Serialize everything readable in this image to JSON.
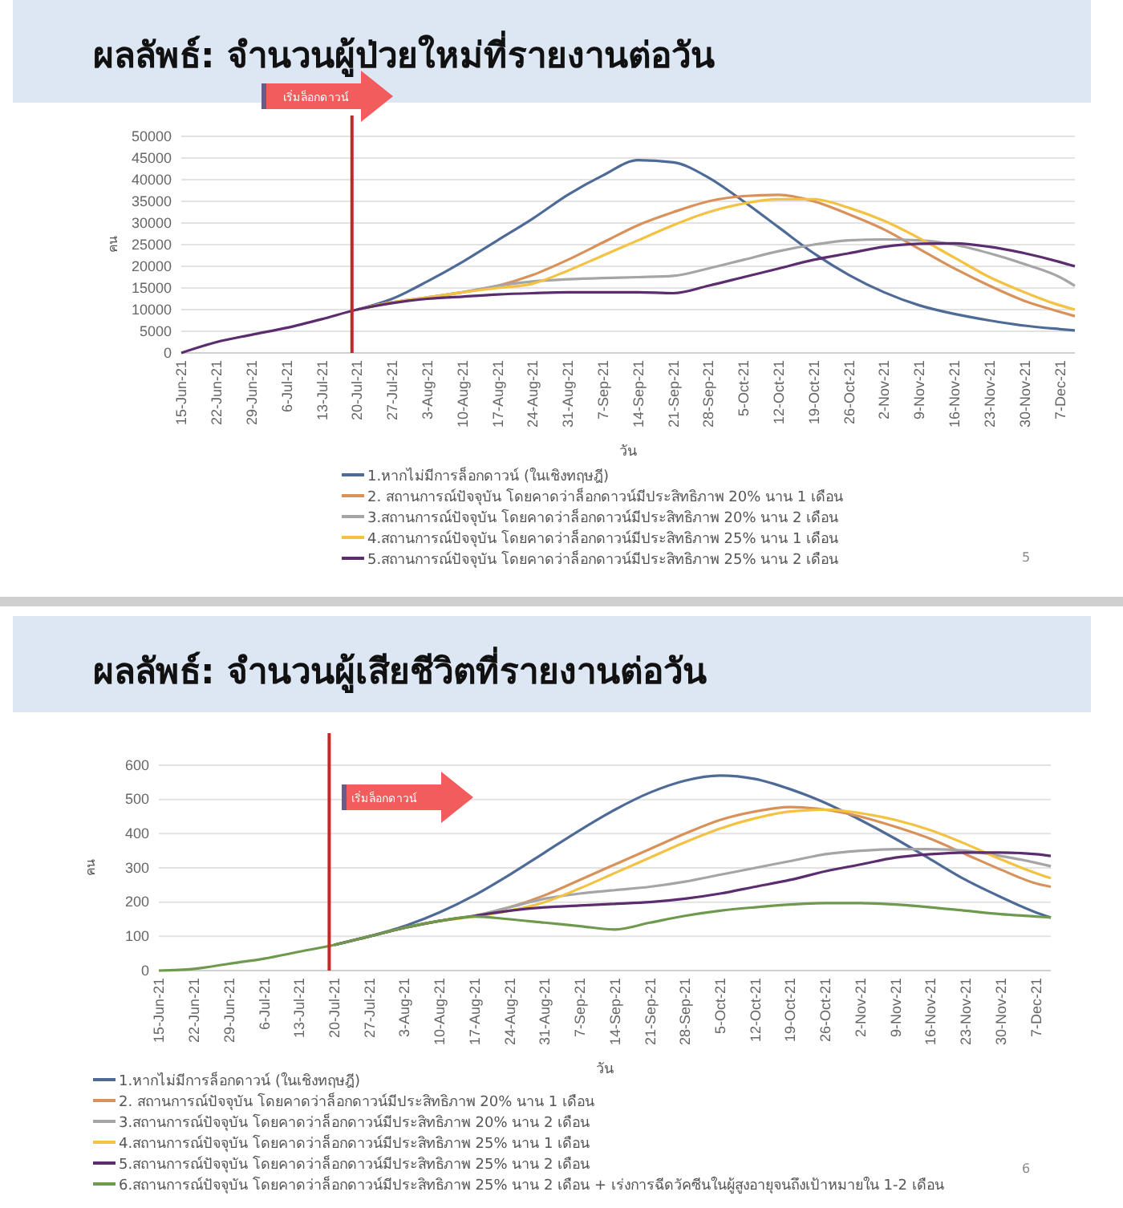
{
  "chart_data": [
    {
      "type": "line",
      "title": "ผลลัพธ์: จำนวนผู้ป่วยใหม่ที่รายงานต่อวัน",
      "xlabel": "วัน",
      "ylabel": "คน",
      "x": [
        "--06-15",
        "--06-22",
        "--06-29",
        "--07-06",
        "--07-13",
        "--07-20",
        "--07-27",
        "--08-03",
        "--08-10",
        "--08-17",
        "--08-24",
        "--08-31",
        "--09-07",
        "--09-14",
        "--09-21",
        "--09-28",
        "--10-05",
        "--10-12",
        "--10-19",
        "--10-26",
        "--11-02",
        "--11-09",
        "--11-16",
        "--11-23",
        "--11-30",
        "--12-07",
        "--12-10"
      ],
      "series": [
        {
          "name": "1.หากไม่มีการล็อกดาวน์ (ในเชิงทฤษฎี)",
          "color": "#4e6a97",
          "values": [
            null,
            null,
            null,
            null,
            null,
            10000,
            12500,
            16500,
            21000,
            26000,
            31000,
            36500,
            41000,
            44500,
            44000,
            40500,
            35000,
            29000,
            23000,
            18000,
            14000,
            11000,
            9000,
            7500,
            6300,
            5500,
            5200
          ]
        },
        {
          "name": "2.  สถานการณ์ปัจจุบัน โดยคาดว่าล็อกดาวน์มีประสิทธิภาพ 20% นาน 1 เดือน",
          "color": "#d9915a",
          "values": [
            null,
            null,
            null,
            null,
            null,
            10000,
            11700,
            12800,
            14000,
            15500,
            18000,
            21500,
            25500,
            29500,
            32500,
            35000,
            36200,
            36500,
            35000,
            32000,
            28500,
            24000,
            19500,
            15500,
            12000,
            9500,
            8500
          ]
        },
        {
          "name": "3.สถานการณ์ปัจจุบัน โดยคาดว่าล็อกดาวน์มีประสิทธิภาพ 20% นาน 2 เดือน",
          "color": "#a5a5a5",
          "values": [
            null,
            null,
            null,
            null,
            null,
            10000,
            11700,
            12800,
            14000,
            15500,
            16500,
            17000,
            17300,
            17500,
            17800,
            19500,
            21500,
            23500,
            25000,
            26000,
            26200,
            26000,
            25000,
            23000,
            20500,
            17500,
            15500
          ]
        },
        {
          "name": "4.สถานการณ์ปัจจุบัน โดยคาดว่าล็อกดาวน์มีประสิทธิภาพ 25% นาน 1 เดือน",
          "color": "#f4c242",
          "values": [
            null,
            null,
            null,
            null,
            null,
            10000,
            11700,
            12800,
            14000,
            15000,
            16000,
            19000,
            22500,
            26000,
            29500,
            32500,
            34500,
            35500,
            35500,
            33500,
            30500,
            26500,
            22000,
            17500,
            14000,
            11000,
            10000
          ]
        },
        {
          "name": "5.สถานการณ์ปัจจุบัน โดยคาดว่าล็อกดาวน์มีประสิทธิภาพ 25% นาน 2 เดือน",
          "color": "#5b2d6e",
          "values": [
            0,
            2500,
            4200,
            5800,
            7800,
            10000,
            11500,
            12500,
            13000,
            13500,
            13800,
            14000,
            14000,
            14000,
            13800,
            15500,
            17500,
            19500,
            21500,
            23000,
            24500,
            25200,
            25300,
            24500,
            23000,
            21000,
            20000
          ]
        }
      ],
      "xlim": [
        "--06-15",
        "--12-10"
      ],
      "xticks": [
        {
          "value": "--06-15",
          "label": "15-Jun-21"
        },
        {
          "value": "--06-22",
          "label": "22-Jun-21"
        },
        {
          "value": "--06-29",
          "label": "29-Jun-21"
        },
        {
          "value": "--07-06",
          "label": "6-Jul-21"
        },
        {
          "value": "--07-13",
          "label": "13-Jul-21"
        },
        {
          "value": "--07-20",
          "label": "20-Jul-21"
        },
        {
          "value": "--07-27",
          "label": "27-Jul-21"
        },
        {
          "value": "--08-03",
          "label": "3-Aug-21"
        },
        {
          "value": "--08-10",
          "label": "10-Aug-21"
        },
        {
          "value": "--08-17",
          "label": "17-Aug-21"
        },
        {
          "value": "--08-24",
          "label": "24-Aug-21"
        },
        {
          "value": "--08-31",
          "label": "31-Aug-21"
        },
        {
          "value": "--09-07",
          "label": "7-Sep-21"
        },
        {
          "value": "--09-14",
          "label": "14-Sep-21"
        },
        {
          "value": "--09-21",
          "label": "21-Sep-21"
        },
        {
          "value": "--09-28",
          "label": "28-Sep-21"
        },
        {
          "value": "--10-05",
          "label": "5-Oct-21"
        },
        {
          "value": "--10-12",
          "label": "12-Oct-21"
        },
        {
          "value": "--10-19",
          "label": "19-Oct-21"
        },
        {
          "value": "--10-26",
          "label": "26-Oct-21"
        },
        {
          "value": "--11-02",
          "label": "2-Nov-21"
        },
        {
          "value": "--11-09",
          "label": "9-Nov-21"
        },
        {
          "value": "--11-16",
          "label": "16-Nov-21"
        },
        {
          "value": "--11-23",
          "label": "23-Nov-21"
        },
        {
          "value": "--11-30",
          "label": "30-Nov-21"
        },
        {
          "value": "--12-07",
          "label": "7-Dec-21"
        }
      ],
      "ylim": [
        0,
        50000
      ],
      "yticks": [
        0,
        5000,
        10000,
        15000,
        20000,
        25000,
        30000,
        35000,
        40000,
        45000,
        50000
      ],
      "grid": "y",
      "legend": "bottom",
      "ref_lines": [
        {
          "axis": "x",
          "value": "--07-19",
          "label": "เริ่มล็อกดาวน์",
          "color": "#c62828"
        }
      ],
      "annotations": [
        "5"
      ]
    },
    {
      "type": "line",
      "title": "ผลลัพธ์: จำนวนผู้เสียชีวิตที่รายงานต่อวัน",
      "xlabel": "วัน",
      "ylabel": "คน",
      "x": [
        "--06-15",
        "--06-22",
        "--06-29",
        "--07-06",
        "--07-13",
        "--07-20",
        "--07-27",
        "--08-03",
        "--08-10",
        "--08-17",
        "--08-24",
        "--08-31",
        "--09-07",
        "--09-14",
        "--09-21",
        "--09-28",
        "--10-05",
        "--10-12",
        "--10-19",
        "--10-26",
        "--11-02",
        "--11-09",
        "--11-16",
        "--11-23",
        "--11-30",
        "--12-07",
        "--12-10"
      ],
      "series": [
        {
          "name": "1.หากไม่มีการล็อกดาวน์ (ในเชิงทฤษฎี)",
          "color": "#4e6a97",
          "values": [
            null,
            null,
            null,
            null,
            null,
            75,
            100,
            130,
            170,
            220,
            280,
            345,
            410,
            470,
            520,
            555,
            570,
            560,
            530,
            490,
            440,
            385,
            325,
            265,
            215,
            170,
            155
          ]
        },
        {
          "name": "2.  สถานการณ์ปัจจุบัน โดยคาดว่าล็อกดาวน์มีประสิทธิภาพ 20% นาน 1 เดือน",
          "color": "#d9915a",
          "values": [
            null,
            null,
            null,
            null,
            null,
            75,
            100,
            125,
            145,
            160,
            185,
            220,
            265,
            310,
            355,
            400,
            440,
            465,
            478,
            470,
            450,
            420,
            385,
            340,
            295,
            255,
            245
          ]
        },
        {
          "name": "3.สถานการณ์ปัจจุบัน โดยคาดว่าล็อกดาวน์มีประสิทธิภาพ 20% นาน 2 เดือน",
          "color": "#a5a5a5",
          "values": [
            null,
            null,
            null,
            null,
            null,
            75,
            100,
            125,
            145,
            160,
            185,
            210,
            225,
            235,
            245,
            260,
            280,
            300,
            320,
            340,
            350,
            355,
            355,
            350,
            335,
            315,
            305
          ]
        },
        {
          "name": "4.สถานการณ์ปัจจุบัน โดยคาดว่าล็อกดาวน์มีประสิทธิภาพ 25% นาน 1 เดือน",
          "color": "#f4c242",
          "values": [
            null,
            null,
            null,
            null,
            null,
            null,
            null,
            125,
            145,
            158,
            175,
            200,
            240,
            285,
            330,
            375,
            415,
            445,
            465,
            470,
            460,
            440,
            410,
            370,
            325,
            285,
            270
          ]
        },
        {
          "name": "5.สถานการณ์ปัจจุบัน โดยคาดว่าล็อกดาวน์มีประสิทธิภาพ 25% นาน 2 เดือน",
          "color": "#5b2d6e",
          "values": [
            null,
            null,
            null,
            null,
            null,
            75,
            100,
            125,
            145,
            160,
            175,
            185,
            190,
            195,
            200,
            210,
            225,
            245,
            265,
            290,
            310,
            330,
            340,
            345,
            345,
            340,
            335
          ]
        },
        {
          "name": "6.สถานการณ์ปัจจุบัน โดยคาดว่าล็อกดาวน์มีประสิทธิภาพ 25% นาน 2 เดือน + เร่งการฉีดวัคซีนในผู้สูงอายุจนถึงเป้าหมายใน 1-2 เดือน",
          "color": "#6f9a4e",
          "values": [
            0,
            5,
            20,
            35,
            55,
            75,
            100,
            125,
            145,
            158,
            150,
            140,
            130,
            120,
            140,
            160,
            175,
            185,
            193,
            197,
            197,
            193,
            185,
            175,
            165,
            158,
            155
          ]
        }
      ],
      "xlim": [
        "--06-15",
        "--12-10"
      ],
      "xticks": [
        {
          "value": "--06-15",
          "label": "15-Jun-21"
        },
        {
          "value": "--06-22",
          "label": "22-Jun-21"
        },
        {
          "value": "--06-29",
          "label": "29-Jun-21"
        },
        {
          "value": "--07-06",
          "label": "6-Jul-21"
        },
        {
          "value": "--07-13",
          "label": "13-Jul-21"
        },
        {
          "value": "--07-20",
          "label": "20-Jul-21"
        },
        {
          "value": "--07-27",
          "label": "27-Jul-21"
        },
        {
          "value": "--08-03",
          "label": "3-Aug-21"
        },
        {
          "value": "--08-10",
          "label": "10-Aug-21"
        },
        {
          "value": "--08-17",
          "label": "17-Aug-21"
        },
        {
          "value": "--08-24",
          "label": "24-Aug-21"
        },
        {
          "value": "--08-31",
          "label": "31-Aug-21"
        },
        {
          "value": "--09-07",
          "label": "7-Sep-21"
        },
        {
          "value": "--09-14",
          "label": "14-Sep-21"
        },
        {
          "value": "--09-21",
          "label": "21-Sep-21"
        },
        {
          "value": "--09-28",
          "label": "28-Sep-21"
        },
        {
          "value": "--10-05",
          "label": "5-Oct-21"
        },
        {
          "value": "--10-12",
          "label": "12-Oct-21"
        },
        {
          "value": "--10-19",
          "label": "19-Oct-21"
        },
        {
          "value": "--10-26",
          "label": "26-Oct-21"
        },
        {
          "value": "--11-02",
          "label": "2-Nov-21"
        },
        {
          "value": "--11-09",
          "label": "9-Nov-21"
        },
        {
          "value": "--11-16",
          "label": "16-Nov-21"
        },
        {
          "value": "--11-23",
          "label": "23-Nov-21"
        },
        {
          "value": "--11-30",
          "label": "30-Nov-21"
        },
        {
          "value": "--12-07",
          "label": "7-Dec-21"
        }
      ],
      "ylim": [
        0,
        600
      ],
      "yticks": [
        0,
        100,
        200,
        300,
        400,
        500,
        600
      ],
      "grid": "y",
      "legend": "bottom",
      "ref_lines": [
        {
          "axis": "x",
          "value": "--07-19",
          "label": "เริ่มล็อกดาวน์",
          "color": "#c62828"
        }
      ],
      "annotations": [
        "6"
      ]
    }
  ]
}
